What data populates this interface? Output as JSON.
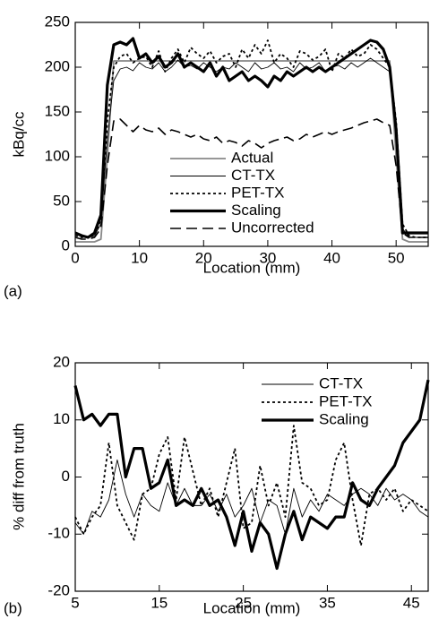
{
  "chart_data": [
    {
      "type": "line",
      "panel_label": "(a)",
      "xlabel": "Location (mm)",
      "ylabel": "kBq/cc",
      "x": [
        0,
        1,
        2,
        3,
        4,
        5,
        6,
        7,
        8,
        9,
        10,
        11,
        12,
        13,
        14,
        15,
        16,
        17,
        18,
        19,
        20,
        21,
        22,
        23,
        24,
        25,
        26,
        27,
        28,
        29,
        30,
        31,
        32,
        33,
        34,
        35,
        36,
        37,
        38,
        39,
        40,
        41,
        42,
        43,
        44,
        45,
        46,
        47,
        48,
        49,
        50,
        51,
        52,
        53,
        54,
        55
      ],
      "xlim": [
        0,
        55
      ],
      "xticks": [
        0,
        10,
        20,
        30,
        40,
        50
      ],
      "ylim": [
        0,
        250
      ],
      "yticks": [
        0,
        50,
        100,
        150,
        200,
        250
      ],
      "legend": "lower center",
      "series": [
        {
          "name": "Actual",
          "color": "#888888",
          "linestyle": "solid",
          "linewidth": 1.8,
          "values": [
            5,
            5,
            5,
            5,
            8,
            100,
            207,
            207,
            207,
            207,
            207,
            207,
            207,
            207,
            207,
            207,
            207,
            207,
            207,
            207,
            207,
            207,
            207,
            207,
            207,
            207,
            207,
            207,
            207,
            207,
            207,
            207,
            207,
            207,
            207,
            207,
            207,
            207,
            207,
            207,
            207,
            207,
            207,
            207,
            207,
            207,
            207,
            207,
            207,
            207,
            100,
            8,
            5,
            5,
            5,
            5
          ]
        },
        {
          "name": "CT-TX",
          "color": "#000000",
          "linestyle": "solid",
          "linewidth": 0.9,
          "values": [
            15,
            12,
            10,
            12,
            25,
            120,
            185,
            198,
            200,
            196,
            205,
            200,
            198,
            205,
            195,
            200,
            208,
            200,
            202,
            198,
            205,
            200,
            195,
            200,
            198,
            205,
            200,
            195,
            205,
            198,
            200,
            205,
            198,
            200,
            195,
            205,
            198,
            200,
            205,
            195,
            200,
            202,
            198,
            205,
            200,
            205,
            210,
            205,
            200,
            195,
            120,
            20,
            10,
            10,
            10,
            10
          ]
        },
        {
          "name": "PET-TX",
          "color": "#000000",
          "linestyle": "dotted",
          "linewidth": 1.8,
          "values": [
            12,
            10,
            10,
            12,
            30,
            140,
            200,
            212,
            215,
            205,
            210,
            212,
            200,
            218,
            195,
            210,
            220,
            205,
            222,
            215,
            210,
            218,
            205,
            212,
            215,
            200,
            220,
            210,
            225,
            215,
            230,
            205,
            215,
            210,
            200,
            218,
            215,
            208,
            212,
            220,
            195,
            215,
            210,
            220,
            212,
            215,
            225,
            220,
            210,
            200,
            140,
            25,
            12,
            10,
            10,
            10
          ]
        },
        {
          "name": "Scaling",
          "color": "#000000",
          "linestyle": "solid",
          "linewidth": 3.2,
          "values": [
            15,
            12,
            10,
            15,
            35,
            180,
            225,
            228,
            225,
            232,
            210,
            215,
            205,
            212,
            200,
            205,
            215,
            200,
            205,
            200,
            195,
            205,
            190,
            200,
            185,
            190,
            195,
            185,
            190,
            185,
            178,
            190,
            185,
            195,
            190,
            195,
            200,
            195,
            200,
            195,
            200,
            205,
            210,
            215,
            220,
            225,
            230,
            228,
            220,
            200,
            130,
            15,
            15,
            15,
            15,
            15
          ]
        },
        {
          "name": "Uncorrected",
          "color": "#000000",
          "linestyle": "dashed",
          "linewidth": 1.6,
          "values": [
            10,
            8,
            8,
            10,
            20,
            90,
            140,
            142,
            135,
            128,
            135,
            130,
            128,
            132,
            125,
            130,
            128,
            125,
            122,
            125,
            120,
            118,
            122,
            115,
            118,
            116,
            112,
            118,
            115,
            110,
            115,
            118,
            120,
            122,
            118,
            120,
            125,
            122,
            125,
            128,
            125,
            128,
            130,
            132,
            135,
            138,
            140,
            142,
            138,
            135,
            90,
            15,
            10,
            10,
            10,
            10
          ]
        }
      ]
    },
    {
      "type": "line",
      "panel_label": "(b)",
      "xlabel": "Location (mm)",
      "ylabel": "% diff from truth",
      "x": [
        5,
        6,
        7,
        8,
        9,
        10,
        11,
        12,
        13,
        14,
        15,
        16,
        17,
        18,
        19,
        20,
        21,
        22,
        23,
        24,
        25,
        26,
        27,
        28,
        29,
        30,
        31,
        32,
        33,
        34,
        35,
        36,
        37,
        38,
        39,
        40,
        41,
        42,
        43,
        44,
        45,
        46,
        47
      ],
      "xlim": [
        5,
        47
      ],
      "xticks": [
        5,
        15,
        25,
        35,
        45
      ],
      "ylim": [
        -20,
        20
      ],
      "yticks": [
        -20,
        -10,
        0,
        10,
        20
      ],
      "legend": "upper right",
      "series": [
        {
          "name": "CT-TX",
          "color": "#000000",
          "linestyle": "solid",
          "linewidth": 0.9,
          "values": [
            -8,
            -10,
            -6,
            -7,
            -4,
            3,
            -3,
            -7,
            -3,
            -5,
            -6,
            -1,
            -5,
            -2,
            -5,
            -5,
            -3,
            -6,
            -3,
            -7,
            -5,
            -2,
            -8,
            -4,
            -5,
            -10,
            -2,
            -7,
            -4,
            -6,
            -3,
            -4,
            -5,
            -3,
            -2,
            -3,
            -5,
            -2,
            -4,
            -3,
            -4,
            -6,
            -7
          ]
        },
        {
          "name": "PET-TX",
          "color": "#000000",
          "linestyle": "dotted",
          "linewidth": 1.8,
          "values": [
            -7,
            -10,
            -7,
            -5,
            6,
            -5,
            -8,
            -11,
            -3,
            -2,
            4,
            7,
            -4,
            7,
            1,
            -5,
            -2,
            -7,
            -1,
            5,
            -9,
            -8,
            2,
            -5,
            -1,
            -7,
            9,
            -1,
            -2,
            -5,
            -4,
            3,
            6,
            -4,
            -12,
            -3,
            -2,
            -4,
            -2,
            -6,
            -4,
            -5,
            -6
          ]
        },
        {
          "name": "Scaling",
          "color": "#000000",
          "linestyle": "solid",
          "linewidth": 3.2,
          "values": [
            16,
            10,
            11,
            9,
            11,
            11,
            0,
            5,
            5,
            -2,
            -1,
            3,
            -5,
            -4,
            -5,
            -2,
            -5,
            -4,
            -7,
            -12,
            -6,
            -13,
            -8,
            -10,
            -16,
            -10,
            -6,
            -11,
            -7,
            -8,
            -9,
            -7,
            -7,
            -1,
            -4,
            -5,
            -2,
            0,
            2,
            6,
            8,
            10,
            17
          ]
        }
      ]
    }
  ]
}
